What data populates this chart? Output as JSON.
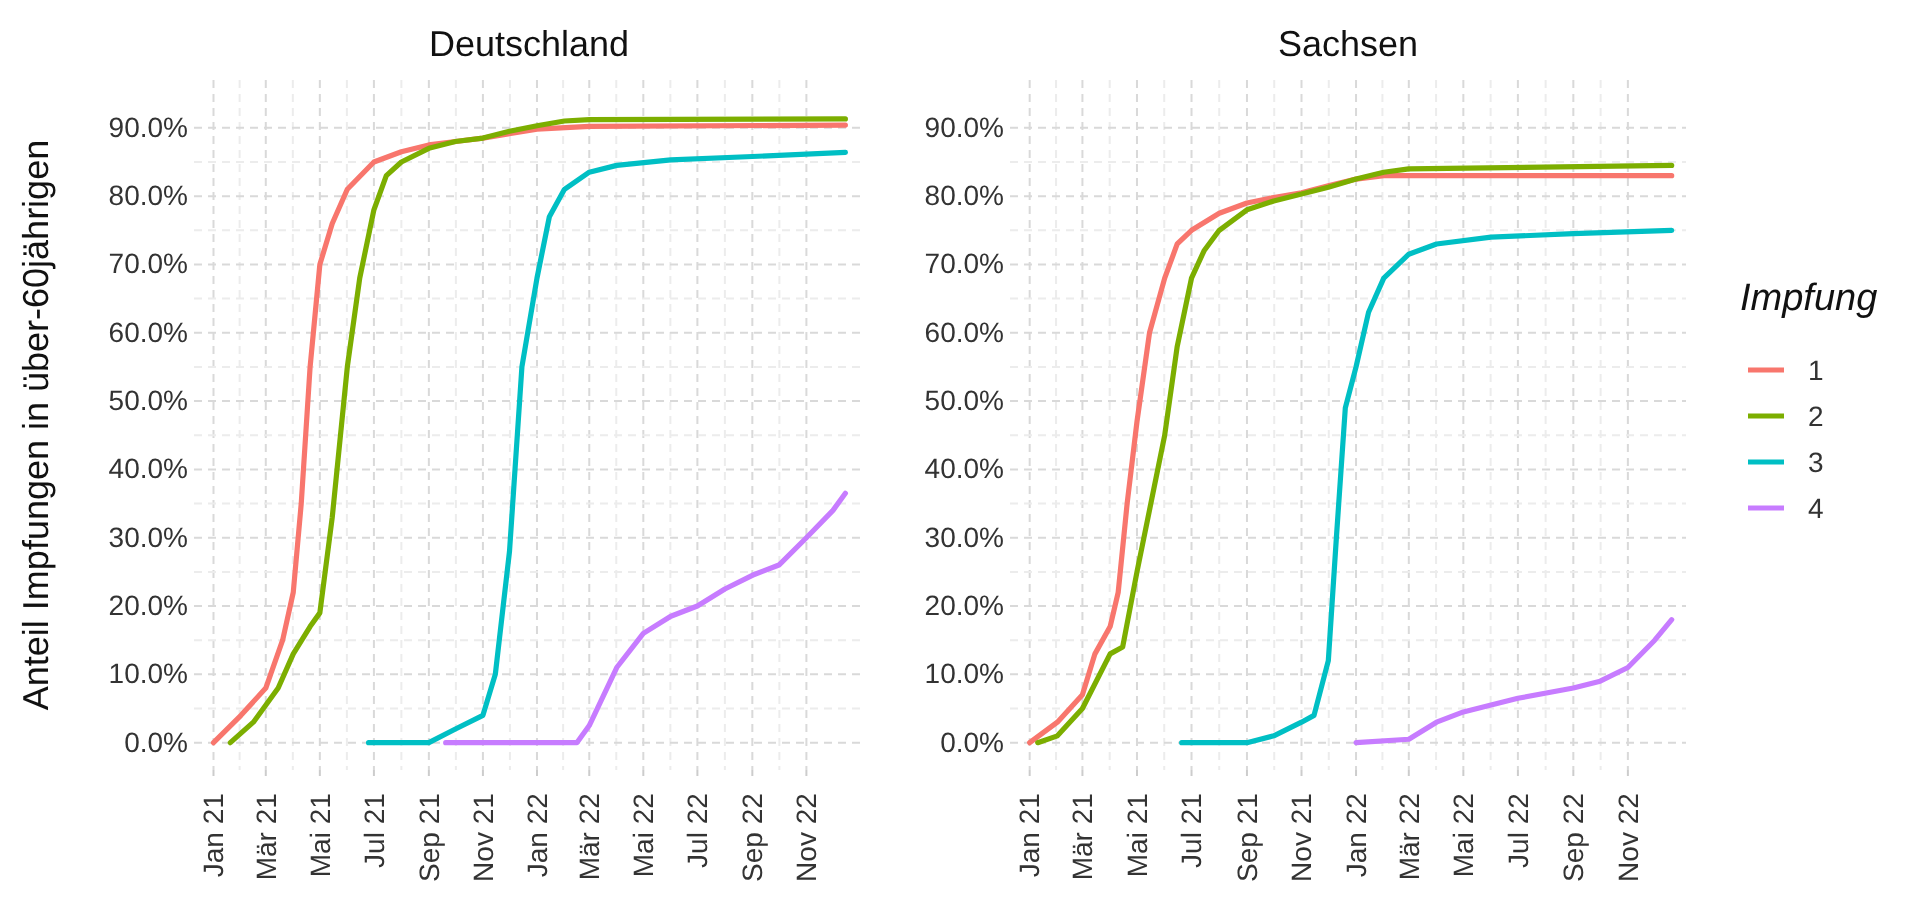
{
  "chart_data": [
    {
      "type": "line",
      "title": "Deutschland",
      "ylabel": "Anteil Impfungen in über-60jährigen",
      "xlim": [
        "2020-12-10",
        "2023-01-05"
      ],
      "ylim": [
        -4,
        97
      ],
      "grid": true,
      "legend": false,
      "marker": "none",
      "line_style": "solid",
      "xticks": [
        {
          "value": "2021-01-01",
          "label": "Jan 21"
        },
        {
          "value": "2021-03-01",
          "label": "Mär 21"
        },
        {
          "value": "2021-05-01",
          "label": "Mai 21"
        },
        {
          "value": "2021-07-01",
          "label": "Jul 21"
        },
        {
          "value": "2021-09-01",
          "label": "Sep 21"
        },
        {
          "value": "2021-11-01",
          "label": "Nov 21"
        },
        {
          "value": "2022-01-01",
          "label": "Jan 22"
        },
        {
          "value": "2022-03-01",
          "label": "Mär 22"
        },
        {
          "value": "2022-05-01",
          "label": "Mai 22"
        },
        {
          "value": "2022-07-01",
          "label": "Jul 22"
        },
        {
          "value": "2022-09-01",
          "label": "Sep 22"
        },
        {
          "value": "2022-11-01",
          "label": "Nov 22"
        }
      ],
      "yticks": [
        {
          "value": 0,
          "label": "0.0%"
        },
        {
          "value": 10,
          "label": "10.0%"
        },
        {
          "value": 20,
          "label": "20.0%"
        },
        {
          "value": 30,
          "label": "30.0%"
        },
        {
          "value": 40,
          "label": "40.0%"
        },
        {
          "value": 50,
          "label": "50.0%"
        },
        {
          "value": 60,
          "label": "60.0%"
        },
        {
          "value": 70,
          "label": "70.0%"
        },
        {
          "value": 80,
          "label": "80.0%"
        },
        {
          "value": 90,
          "label": "90.0%"
        }
      ],
      "series": [
        {
          "color": "#f8766d",
          "x": [
            "2021-01-01",
            "2021-02-01",
            "2021-03-01",
            "2021-03-20",
            "2021-04-01",
            "2021-04-10",
            "2021-04-20",
            "2021-05-01",
            "2021-05-15",
            "2021-06-01",
            "2021-07-01",
            "2021-08-01",
            "2021-09-01",
            "2021-10-01",
            "2021-11-01",
            "2022-01-01",
            "2022-03-01",
            "2022-12-15"
          ],
          "values": [
            0,
            4,
            8,
            15,
            22,
            35,
            55,
            70,
            76,
            81,
            85,
            86.5,
            87.5,
            88,
            88.5,
            89.8,
            90.2,
            90.4
          ]
        },
        {
          "color": "#7cae00",
          "x": [
            "2021-01-20",
            "2021-02-15",
            "2021-03-15",
            "2021-04-01",
            "2021-04-20",
            "2021-05-01",
            "2021-05-15",
            "2021-06-01",
            "2021-06-15",
            "2021-07-01",
            "2021-07-15",
            "2021-08-01",
            "2021-09-01",
            "2021-10-01",
            "2021-11-01",
            "2021-12-01",
            "2022-01-01",
            "2022-02-01",
            "2022-03-01",
            "2022-12-15"
          ],
          "values": [
            0,
            3,
            8,
            13,
            17,
            19,
            33,
            55,
            68,
            78,
            83,
            85,
            87,
            88,
            88.5,
            89.5,
            90.3,
            91,
            91.2,
            91.3
          ]
        },
        {
          "color": "#00bfc4",
          "x": [
            "2021-06-25",
            "2021-09-01",
            "2021-10-01",
            "2021-11-01",
            "2021-11-15",
            "2021-12-01",
            "2021-12-15",
            "2022-01-01",
            "2022-01-15",
            "2022-02-01",
            "2022-03-01",
            "2022-04-01",
            "2022-06-01",
            "2022-09-01",
            "2022-12-15"
          ],
          "values": [
            0,
            0,
            2,
            4,
            10,
            28,
            55,
            68,
            77,
            81,
            83.5,
            84.5,
            85.3,
            85.8,
            86.4
          ]
        },
        {
          "color": "#c77cff",
          "x": [
            "2021-09-20",
            "2022-02-15",
            "2022-03-01",
            "2022-04-01",
            "2022-05-01",
            "2022-06-01",
            "2022-07-01",
            "2022-08-01",
            "2022-09-01",
            "2022-10-01",
            "2022-11-01",
            "2022-12-01",
            "2022-12-15"
          ],
          "values": [
            0,
            0,
            2.5,
            11,
            16,
            18.5,
            20,
            22.5,
            24.5,
            26,
            30,
            34,
            36.5
          ]
        }
      ]
    },
    {
      "type": "line",
      "title": "Sachsen",
      "xlim": [
        "2020-12-10",
        "2023-01-05"
      ],
      "ylim": [
        -4,
        97
      ],
      "grid": true,
      "legend": "right",
      "legend_title": "Impfung",
      "marker": "none",
      "line_style": "solid",
      "xticks": [
        {
          "value": "2021-01-01",
          "label": "Jan 21"
        },
        {
          "value": "2021-03-01",
          "label": "Mär 21"
        },
        {
          "value": "2021-05-01",
          "label": "Mai 21"
        },
        {
          "value": "2021-07-01",
          "label": "Jul 21"
        },
        {
          "value": "2021-09-01",
          "label": "Sep 21"
        },
        {
          "value": "2021-11-01",
          "label": "Nov 21"
        },
        {
          "value": "2022-01-01",
          "label": "Jan 22"
        },
        {
          "value": "2022-03-01",
          "label": "Mär 22"
        },
        {
          "value": "2022-05-01",
          "label": "Mai 22"
        },
        {
          "value": "2022-07-01",
          "label": "Jul 22"
        },
        {
          "value": "2022-09-01",
          "label": "Sep 22"
        },
        {
          "value": "2022-11-01",
          "label": "Nov 22"
        }
      ],
      "yticks": [
        {
          "value": 0,
          "label": "0.0%"
        },
        {
          "value": 10,
          "label": "10.0%"
        },
        {
          "value": 20,
          "label": "20.0%"
        },
        {
          "value": 30,
          "label": "30.0%"
        },
        {
          "value": 40,
          "label": "40.0%"
        },
        {
          "value": 50,
          "label": "50.0%"
        },
        {
          "value": 60,
          "label": "60.0%"
        },
        {
          "value": 70,
          "label": "70.0%"
        },
        {
          "value": 80,
          "label": "80.0%"
        },
        {
          "value": 90,
          "label": "90.0%"
        }
      ],
      "series": [
        {
          "name": "1",
          "color": "#f8766d",
          "x": [
            "2021-01-01",
            "2021-02-01",
            "2021-03-01",
            "2021-03-15",
            "2021-04-01",
            "2021-04-10",
            "2021-04-20",
            "2021-05-01",
            "2021-05-15",
            "2021-06-01",
            "2021-06-15",
            "2021-07-01",
            "2021-08-01",
            "2021-09-01",
            "2021-10-01",
            "2021-11-01",
            "2021-12-01",
            "2022-01-01",
            "2022-02-01",
            "2022-12-20"
          ],
          "values": [
            0,
            3,
            7,
            13,
            17,
            22,
            35,
            47,
            60,
            68,
            73,
            75,
            77.5,
            79,
            79.8,
            80.5,
            81.5,
            82.5,
            83,
            83
          ]
        },
        {
          "name": "2",
          "color": "#7cae00",
          "x": [
            "2021-01-10",
            "2021-02-01",
            "2021-03-01",
            "2021-04-01",
            "2021-04-15",
            "2021-05-01",
            "2021-06-01",
            "2021-06-15",
            "2021-07-01",
            "2021-07-15",
            "2021-08-01",
            "2021-09-01",
            "2021-10-01",
            "2021-11-01",
            "2021-12-01",
            "2022-01-01",
            "2022-02-01",
            "2022-03-01",
            "2022-12-20"
          ],
          "values": [
            0,
            1,
            5,
            13,
            14,
            25,
            45,
            58,
            68,
            72,
            75,
            78,
            79.3,
            80.3,
            81.3,
            82.5,
            83.5,
            84,
            84.5
          ]
        },
        {
          "name": "3",
          "color": "#00bfc4",
          "x": [
            "2021-06-20",
            "2021-09-01",
            "2021-10-01",
            "2021-11-01",
            "2021-11-15",
            "2021-12-01",
            "2021-12-10",
            "2021-12-20",
            "2022-01-01",
            "2022-01-15",
            "2022-02-01",
            "2022-03-01",
            "2022-04-01",
            "2022-06-01",
            "2022-09-01",
            "2022-12-20"
          ],
          "values": [
            0,
            0,
            1,
            3,
            4,
            12,
            30,
            49,
            55,
            63,
            68,
            71.5,
            73,
            74,
            74.5,
            75
          ]
        },
        {
          "name": "4",
          "color": "#c77cff",
          "x": [
            "2022-01-01",
            "2022-03-01",
            "2022-04-01",
            "2022-05-01",
            "2022-06-01",
            "2022-07-01",
            "2022-09-01",
            "2022-10-01",
            "2022-11-01",
            "2022-12-01",
            "2022-12-20"
          ],
          "values": [
            0,
            0.5,
            3,
            4.5,
            5.5,
            6.5,
            8,
            9,
            11,
            15,
            18
          ]
        }
      ]
    }
  ]
}
